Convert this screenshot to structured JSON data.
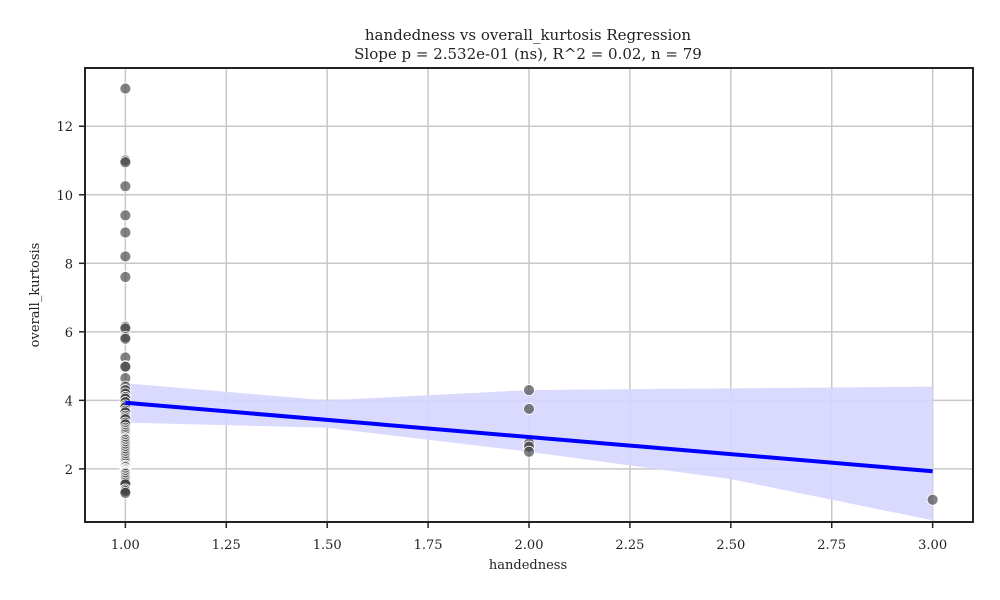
{
  "chart_data": {
    "type": "scatter",
    "title": "handedness vs overall_kurtosis Regression",
    "subtitle": "Slope p = 2.532e-01 (ns), R^2 = 0.02, n = 79",
    "xlabel": "handedness",
    "ylabel": "overall_kurtosis",
    "xlim": [
      0.9,
      3.1
    ],
    "ylim": [
      0.45,
      13.7
    ],
    "grid": true,
    "x_ticks": [
      1.0,
      1.25,
      1.5,
      1.75,
      2.0,
      2.25,
      2.5,
      2.75,
      3.0
    ],
    "x_tick_labels": [
      "1.00",
      "1.25",
      "1.50",
      "1.75",
      "2.00",
      "2.25",
      "2.50",
      "2.75",
      "3.00"
    ],
    "y_ticks": [
      2,
      4,
      6,
      8,
      10,
      12
    ],
    "y_tick_labels": [
      "2",
      "4",
      "6",
      "8",
      "10",
      "12"
    ],
    "colors": {
      "points": "#404040",
      "point_edge": "#ffffff",
      "regression_line": "#0000ff",
      "confidence_band": "#d6d6ff",
      "grid": "#c8c8c8",
      "frame": "#222222"
    },
    "points": [
      {
        "x": 1.0,
        "y": 13.1
      },
      {
        "x": 1.0,
        "y": 11.0
      },
      {
        "x": 1.0,
        "y": 10.95
      },
      {
        "x": 1.0,
        "y": 10.25
      },
      {
        "x": 1.0,
        "y": 9.4
      },
      {
        "x": 1.0,
        "y": 8.9
      },
      {
        "x": 1.0,
        "y": 8.2
      },
      {
        "x": 1.0,
        "y": 7.6
      },
      {
        "x": 1.0,
        "y": 6.15
      },
      {
        "x": 1.0,
        "y": 6.1
      },
      {
        "x": 1.0,
        "y": 5.85
      },
      {
        "x": 1.0,
        "y": 5.8
      },
      {
        "x": 1.0,
        "y": 5.25
      },
      {
        "x": 1.0,
        "y": 5.0
      },
      {
        "x": 1.0,
        "y": 4.98
      },
      {
        "x": 1.0,
        "y": 4.65
      },
      {
        "x": 1.0,
        "y": 4.4
      },
      {
        "x": 1.0,
        "y": 4.3
      },
      {
        "x": 1.0,
        "y": 4.2
      },
      {
        "x": 1.0,
        "y": 4.1
      },
      {
        "x": 1.0,
        "y": 4.05
      },
      {
        "x": 1.0,
        "y": 3.95
      },
      {
        "x": 1.0,
        "y": 3.85
      },
      {
        "x": 1.0,
        "y": 3.8
      },
      {
        "x": 1.0,
        "y": 3.7
      },
      {
        "x": 1.0,
        "y": 3.65
      },
      {
        "x": 1.0,
        "y": 3.55
      },
      {
        "x": 1.0,
        "y": 3.5
      },
      {
        "x": 1.0,
        "y": 3.45
      },
      {
        "x": 1.0,
        "y": 3.35
      },
      {
        "x": 1.0,
        "y": 3.3
      },
      {
        "x": 1.0,
        "y": 3.2
      },
      {
        "x": 1.0,
        "y": 3.15
      },
      {
        "x": 1.0,
        "y": 3.1
      },
      {
        "x": 1.0,
        "y": 3.05
      },
      {
        "x": 1.0,
        "y": 3.0
      },
      {
        "x": 1.0,
        "y": 2.95
      },
      {
        "x": 1.0,
        "y": 2.9
      },
      {
        "x": 1.0,
        "y": 2.88
      },
      {
        "x": 1.0,
        "y": 2.85
      },
      {
        "x": 1.0,
        "y": 2.8
      },
      {
        "x": 1.0,
        "y": 2.75
      },
      {
        "x": 1.0,
        "y": 2.7
      },
      {
        "x": 1.0,
        "y": 2.65
      },
      {
        "x": 1.0,
        "y": 2.6
      },
      {
        "x": 1.0,
        "y": 2.55
      },
      {
        "x": 1.0,
        "y": 2.5
      },
      {
        "x": 1.0,
        "y": 2.45
      },
      {
        "x": 1.0,
        "y": 2.4
      },
      {
        "x": 1.0,
        "y": 2.35
      },
      {
        "x": 1.0,
        "y": 2.3
      },
      {
        "x": 1.0,
        "y": 2.25
      },
      {
        "x": 1.0,
        "y": 2.2
      },
      {
        "x": 1.0,
        "y": 2.15
      },
      {
        "x": 1.0,
        "y": 2.1
      },
      {
        "x": 1.0,
        "y": 2.08
      },
      {
        "x": 1.0,
        "y": 2.05
      },
      {
        "x": 1.0,
        "y": 2.0
      },
      {
        "x": 1.0,
        "y": 1.98
      },
      {
        "x": 1.0,
        "y": 1.95
      },
      {
        "x": 1.0,
        "y": 1.92
      },
      {
        "x": 1.0,
        "y": 1.9
      },
      {
        "x": 1.0,
        "y": 1.88
      },
      {
        "x": 1.0,
        "y": 1.85
      },
      {
        "x": 1.0,
        "y": 1.8
      },
      {
        "x": 1.0,
        "y": 1.75
      },
      {
        "x": 1.0,
        "y": 1.7
      },
      {
        "x": 1.0,
        "y": 1.65
      },
      {
        "x": 1.0,
        "y": 1.6
      },
      {
        "x": 1.0,
        "y": 1.55
      },
      {
        "x": 1.0,
        "y": 1.4
      },
      {
        "x": 1.0,
        "y": 1.35
      },
      {
        "x": 1.0,
        "y": 1.3
      },
      {
        "x": 2.0,
        "y": 4.3
      },
      {
        "x": 2.0,
        "y": 3.75
      },
      {
        "x": 2.0,
        "y": 2.75
      },
      {
        "x": 2.0,
        "y": 2.65
      },
      {
        "x": 2.0,
        "y": 2.5
      },
      {
        "x": 3.0,
        "y": 1.1
      }
    ],
    "regression_line": {
      "x": [
        1.0,
        3.0
      ],
      "y": [
        3.93,
        1.93
      ]
    },
    "confidence_band": {
      "x": [
        1.0,
        1.5,
        2.0,
        2.5,
        3.0
      ],
      "upper": [
        4.5,
        4.0,
        4.3,
        4.35,
        4.4
      ],
      "lower": [
        3.35,
        3.2,
        2.5,
        1.7,
        0.5
      ]
    }
  }
}
